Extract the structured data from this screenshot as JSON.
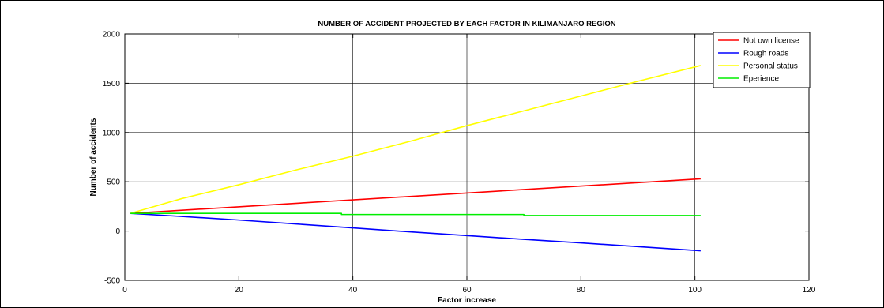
{
  "chart_data": {
    "type": "line",
    "title": "NUMBER OF ACCIDENT PROJECTED BY EACH FACTOR IN KILIMANJARO REGION",
    "xlabel": "Factor increase",
    "ylabel": "Number of accidents",
    "xlim": [
      0,
      120
    ],
    "ylim": [
      -500,
      2000
    ],
    "xticks": [
      0,
      20,
      40,
      60,
      80,
      100,
      120
    ],
    "yticks": [
      -500,
      0,
      500,
      1000,
      1500,
      2000
    ],
    "grid": true,
    "legend_position": "top-right",
    "series": [
      {
        "name": "Not own license",
        "color": "#ff0000",
        "x": [
          1,
          101
        ],
        "y": [
          180,
          530
        ]
      },
      {
        "name": "Rough roads",
        "color": "#0000ff",
        "x": [
          1,
          10,
          20,
          30,
          40,
          50,
          60,
          70,
          80,
          90,
          101
        ],
        "y": [
          180,
          148,
          112,
          72,
          32,
          -8,
          -46,
          -84,
          -120,
          -158,
          -200
        ]
      },
      {
        "name": "Personal status",
        "color": "#ffff00",
        "x": [
          1,
          10,
          20,
          30,
          40,
          50,
          60,
          70,
          80,
          90,
          101
        ],
        "y": [
          180,
          330,
          470,
          620,
          760,
          910,
          1070,
          1220,
          1370,
          1520,
          1680
        ]
      },
      {
        "name": "Eperience",
        "color": "#00ee00",
        "x": [
          1,
          38,
          38,
          70,
          70,
          101
        ],
        "y": [
          180,
          180,
          168,
          168,
          158,
          158
        ]
      }
    ]
  }
}
